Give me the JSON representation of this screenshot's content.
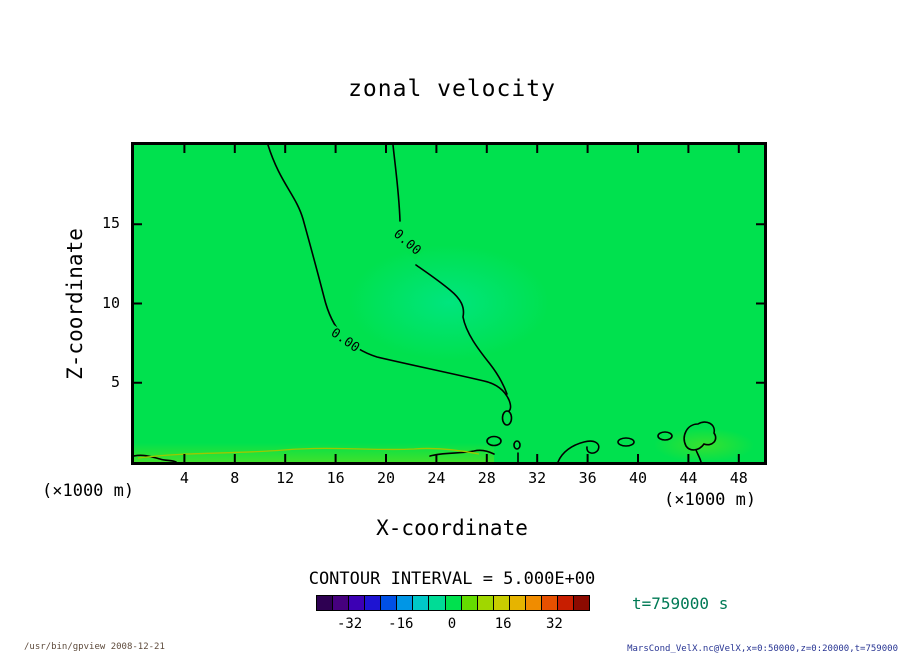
{
  "title": "zonal velocity",
  "axes": {
    "x": {
      "label": "X-coordinate",
      "unit": "(×1000 m)",
      "ticks": [
        4,
        8,
        12,
        16,
        20,
        24,
        28,
        32,
        36,
        40,
        44,
        48
      ],
      "range": [
        0,
        50
      ]
    },
    "y": {
      "label": "Z-coordinate",
      "unit": "(×1000 m)",
      "ticks": [
        5,
        10,
        15
      ],
      "range": [
        0,
        20
      ]
    }
  },
  "contour": {
    "interval_text": "CONTOUR INTERVAL = 5.000E+00",
    "labels": [
      "0.00",
      "0.00"
    ]
  },
  "colorbar": {
    "tick_labels": [
      "-32",
      "-16",
      "0",
      "16",
      "32"
    ],
    "tick_values": [
      -32,
      -16,
      0,
      16,
      32
    ],
    "range": [
      -42.5,
      42.5
    ],
    "colors": [
      "#2e0052",
      "#46007e",
      "#3c00b4",
      "#1e14d2",
      "#0050e6",
      "#0096e6",
      "#00c8c8",
      "#00dc96",
      "#00e14e",
      "#64dc00",
      "#a0d700",
      "#c8cd00",
      "#e6b400",
      "#f08c00",
      "#e65000",
      "#c81e00",
      "#8c0a00"
    ]
  },
  "annotations": {
    "time_label": "t=759000 s",
    "footer_left": "/usr/bin/gpview  2008-12-21",
    "footer_right": "MarsCond_VelX.nc@VelX,x=0:50000,z=0:20000,t=759000"
  },
  "plot": {
    "base_color": "#00e14e"
  },
  "chart_data": {
    "type": "heatmap",
    "title": "zonal velocity",
    "xlabel": "X-coordinate (×1000 m)",
    "ylabel": "Z-coordinate (×1000 m)",
    "xlim": [
      0,
      50
    ],
    "ylim": [
      0,
      20
    ],
    "x_ticks": [
      4,
      8,
      12,
      16,
      20,
      24,
      28,
      32,
      36,
      40,
      44,
      48
    ],
    "y_ticks": [
      5,
      10,
      15
    ],
    "contour_interval": 5.0,
    "visible_contour_levels": [
      0.0
    ],
    "colorbar_ticks": [
      -32,
      -16,
      0,
      16,
      32
    ],
    "colorbar_range": [
      -42.5,
      42.5
    ],
    "x": [
      0,
      5,
      10,
      15,
      20,
      25,
      30,
      35,
      40,
      45,
      50
    ],
    "z": [
      0,
      5,
      10,
      15,
      20
    ],
    "values": [
      [
        2,
        3,
        3,
        3,
        2,
        2,
        1,
        2,
        2,
        3,
        2
      ],
      [
        1,
        1,
        1,
        1,
        0,
        -1,
        -1,
        0,
        1,
        1,
        1
      ],
      [
        1,
        1,
        1,
        0,
        -2,
        -1,
        0,
        1,
        1,
        1,
        1
      ],
      [
        1,
        1,
        1,
        -1,
        -1,
        0,
        1,
        1,
        1,
        1,
        1
      ],
      [
        1,
        1,
        0,
        -1,
        0,
        1,
        1,
        1,
        1,
        1,
        1
      ]
    ],
    "values_note": "Zonal velocity u (m/s), rows from z=0 (bottom) to z=20 (top), estimated from shading: whole field lies within one contour interval of 0; the 0.00 contour encloses a slightly negative pocket in the centre-left and small near-zero cells along the bottom boundary near x=28-46.",
    "time": "t=759000 s"
  }
}
